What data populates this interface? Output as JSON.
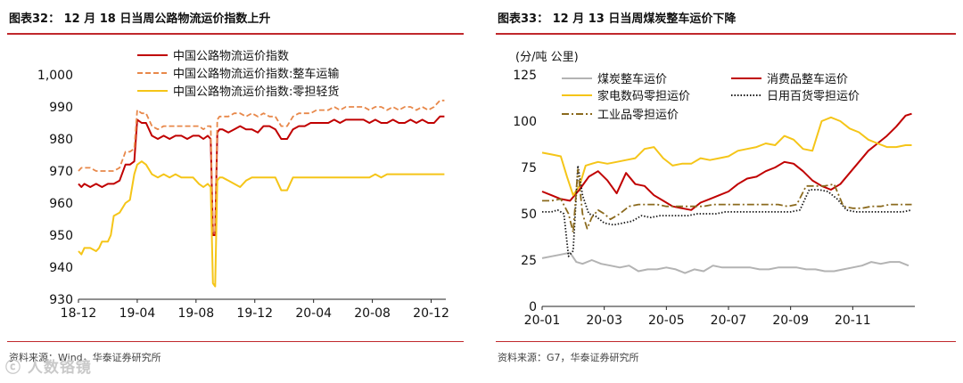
{
  "left": {
    "title": "图表32：  12 月 18 日当周公路物流运价指数上升",
    "source": "资料来源：Wind，华泰证券研究所",
    "chart_data": {
      "type": "line",
      "title": "12 月 18 日当周公路物流运价指数上升",
      "xlabel": "",
      "ylabel": "",
      "ylim": [
        930,
        1000
      ],
      "yticks": [
        930,
        940,
        950,
        960,
        970,
        980,
        990,
        1000
      ],
      "ytick_labels": [
        "930",
        "940",
        "950",
        "960",
        "970",
        "980",
        "990",
        "1,000"
      ],
      "xlim": [
        0,
        25
      ],
      "xticks": [
        0,
        4,
        8,
        12,
        16,
        20,
        24
      ],
      "xtick_labels": [
        "18-12",
        "19-04",
        "19-08",
        "19-12",
        "20-04",
        "20-08",
        "20-12"
      ],
      "legend_position": "top",
      "series": [
        {
          "name": "中国公路物流运价指数",
          "color": "#c00000",
          "style": "solid",
          "x": [
            0,
            0.2,
            0.4,
            0.8,
            1.2,
            1.6,
            2.0,
            2.4,
            2.8,
            3.2,
            3.5,
            3.8,
            4.0,
            4.3,
            4.6,
            5.0,
            5.4,
            5.8,
            6.2,
            6.6,
            7.0,
            7.4,
            7.8,
            8.2,
            8.5,
            8.8,
            9.0,
            9.15,
            9.3,
            9.45,
            9.6,
            9.8,
            10.2,
            10.6,
            11.0,
            11.4,
            11.8,
            12.2,
            12.6,
            13.0,
            13.4,
            13.8,
            14.2,
            14.6,
            15.0,
            15.4,
            15.8,
            16.2,
            16.6,
            17.0,
            17.4,
            17.8,
            18.2,
            18.6,
            19.0,
            19.4,
            19.8,
            20.2,
            20.6,
            21.0,
            21.4,
            21.8,
            22.2,
            22.6,
            23.0,
            23.4,
            23.8,
            24.2,
            24.6,
            24.9
          ],
          "values": [
            966,
            965,
            966,
            965,
            966,
            965,
            966,
            966,
            967,
            972,
            972,
            973,
            986,
            985,
            985,
            981,
            980,
            981,
            980,
            981,
            981,
            980,
            981,
            981,
            980,
            981,
            980,
            950,
            950,
            982,
            983,
            983,
            982,
            983,
            984,
            983,
            983,
            982,
            984,
            984,
            983,
            980,
            980,
            983,
            984,
            984,
            985,
            985,
            985,
            985,
            986,
            985,
            986,
            986,
            986,
            986,
            985,
            986,
            985,
            985,
            986,
            985,
            985,
            986,
            985,
            986,
            985,
            985,
            987,
            987
          ]
        },
        {
          "name": "中国公路物流运价指数:整车运输",
          "color": "#e8884a",
          "style": "dashed",
          "x": [
            0,
            0.2,
            0.4,
            0.8,
            1.2,
            1.6,
            2.0,
            2.4,
            2.8,
            3.2,
            3.5,
            3.8,
            4.0,
            4.3,
            4.6,
            5.0,
            5.4,
            5.8,
            6.2,
            6.6,
            7.0,
            7.4,
            7.8,
            8.2,
            8.5,
            8.8,
            9.0,
            9.15,
            9.3,
            9.45,
            9.6,
            9.8,
            10.2,
            10.6,
            11.0,
            11.4,
            11.8,
            12.2,
            12.6,
            13.0,
            13.4,
            13.8,
            14.2,
            14.6,
            15.0,
            15.4,
            15.8,
            16.2,
            16.6,
            17.0,
            17.4,
            17.8,
            18.2,
            18.6,
            19.0,
            19.4,
            19.8,
            20.2,
            20.6,
            21.0,
            21.4,
            21.8,
            22.2,
            22.6,
            23.0,
            23.4,
            23.8,
            24.2,
            24.6,
            24.9
          ],
          "values": [
            970,
            971,
            971,
            971,
            970,
            970,
            970,
            970,
            971,
            976,
            976,
            977,
            989,
            988,
            988,
            984,
            983,
            984,
            984,
            984,
            984,
            984,
            984,
            984,
            983,
            984,
            984,
            951,
            951,
            986,
            987,
            987,
            987,
            988,
            988,
            987,
            988,
            987,
            988,
            987,
            987,
            984,
            984,
            987,
            988,
            988,
            988,
            989,
            989,
            989,
            990,
            989,
            990,
            990,
            990,
            990,
            989,
            990,
            990,
            989,
            990,
            989,
            990,
            990,
            989,
            990,
            989,
            990,
            992,
            992
          ]
        },
        {
          "name": "中国公路物流运价指数:零担轻货",
          "color": "#f5c518",
          "style": "solid",
          "x": [
            0,
            0.2,
            0.4,
            0.8,
            1.2,
            1.4,
            1.6,
            2.0,
            2.2,
            2.4,
            2.8,
            3.2,
            3.5,
            3.8,
            4.0,
            4.3,
            4.6,
            5.0,
            5.4,
            5.8,
            6.2,
            6.6,
            7.0,
            7.4,
            7.8,
            8.2,
            8.5,
            8.8,
            9.0,
            9.15,
            9.3,
            9.45,
            9.6,
            9.8,
            10.2,
            10.6,
            11.0,
            11.4,
            11.8,
            12.2,
            12.6,
            13.0,
            13.4,
            13.8,
            14.2,
            14.6,
            15.0,
            15.4,
            15.8,
            16.2,
            16.6,
            17.0,
            17.4,
            17.8,
            18.2,
            18.6,
            19.0,
            19.4,
            19.8,
            20.2,
            20.6,
            21.0,
            21.4,
            21.8,
            22.2,
            22.6,
            23.0,
            23.4,
            23.8,
            24.2,
            24.6,
            24.9
          ],
          "values": [
            945,
            944,
            946,
            946,
            945,
            946,
            948,
            948,
            950,
            956,
            957,
            960,
            961,
            969,
            972,
            973,
            972,
            969,
            968,
            969,
            968,
            969,
            968,
            968,
            968,
            966,
            965,
            966,
            965,
            935,
            934,
            967,
            968,
            968,
            967,
            966,
            965,
            967,
            968,
            968,
            968,
            968,
            968,
            964,
            964,
            968,
            968,
            968,
            968,
            968,
            968,
            968,
            968,
            968,
            968,
            968,
            968,
            968,
            968,
            969,
            968,
            969,
            969,
            969,
            969,
            969,
            969,
            969,
            969,
            969,
            969,
            969
          ]
        }
      ]
    }
  },
  "right": {
    "title": "图表33：  12 月 13 日当周煤炭整车运价下降",
    "source": "资料来源：G7，华泰证券研究所",
    "chart_data": {
      "type": "line",
      "title": "12 月 13 日当周煤炭整车运价下降",
      "xlabel": "",
      "ylabel": "(分/吨 公里)",
      "ylim": [
        0,
        125
      ],
      "yticks": [
        0,
        25,
        50,
        75,
        100,
        125
      ],
      "ytick_labels": [
        "0",
        "25",
        "50",
        "75",
        "100",
        "125"
      ],
      "xlim": [
        0,
        12
      ],
      "xticks": [
        0,
        2,
        4,
        6,
        8,
        10
      ],
      "xtick_labels": [
        "20-01",
        "20-03",
        "20-05",
        "20-07",
        "20-09",
        "20-11"
      ],
      "legend_position": "top",
      "series": [
        {
          "name": "煤炭整车运价",
          "color": "#b3b3b3",
          "style": "solid",
          "x": [
            0,
            0.3,
            0.6,
            0.9,
            1.1,
            1.3,
            1.6,
            1.9,
            2.2,
            2.5,
            2.8,
            3.1,
            3.4,
            3.7,
            4.0,
            4.3,
            4.6,
            4.9,
            5.2,
            5.5,
            5.8,
            6.1,
            6.4,
            6.7,
            7.0,
            7.3,
            7.6,
            7.9,
            8.2,
            8.5,
            8.8,
            9.1,
            9.4,
            9.7,
            10.0,
            10.3,
            10.6,
            10.9,
            11.2,
            11.5,
            11.8
          ],
          "values": [
            26,
            27,
            28,
            29,
            24,
            23,
            25,
            23,
            22,
            21,
            22,
            19,
            20,
            20,
            21,
            20,
            18,
            20,
            19,
            22,
            21,
            21,
            21,
            21,
            20,
            20,
            21,
            21,
            21,
            20,
            20,
            19,
            19,
            20,
            21,
            22,
            24,
            23,
            24,
            24,
            22
          ]
        },
        {
          "name": "消费品整车运价",
          "color": "#c00000",
          "style": "solid",
          "x": [
            0,
            0.3,
            0.6,
            0.9,
            1.2,
            1.5,
            1.8,
            2.1,
            2.4,
            2.7,
            3.0,
            3.3,
            3.6,
            3.9,
            4.2,
            4.5,
            4.8,
            5.1,
            5.4,
            5.7,
            6.0,
            6.3,
            6.6,
            6.9,
            7.2,
            7.5,
            7.8,
            8.1,
            8.4,
            8.7,
            9.0,
            9.3,
            9.6,
            9.9,
            10.2,
            10.5,
            10.8,
            11.1,
            11.4,
            11.7,
            11.9
          ],
          "values": [
            62,
            60,
            58,
            57,
            63,
            70,
            73,
            68,
            61,
            72,
            66,
            65,
            60,
            57,
            54,
            53,
            52,
            56,
            58,
            60,
            62,
            66,
            69,
            70,
            73,
            75,
            78,
            77,
            73,
            68,
            65,
            63,
            66,
            72,
            78,
            84,
            88,
            92,
            97,
            103,
            104
          ]
        },
        {
          "name": "家电数码零担运价",
          "color": "#f5c518",
          "style": "solid",
          "x": [
            0,
            0.3,
            0.6,
            0.8,
            1.0,
            1.2,
            1.4,
            1.6,
            1.8,
            2.1,
            2.4,
            2.7,
            3.0,
            3.3,
            3.6,
            3.9,
            4.2,
            4.5,
            4.8,
            5.1,
            5.4,
            5.7,
            6.0,
            6.3,
            6.6,
            6.9,
            7.2,
            7.5,
            7.8,
            8.1,
            8.4,
            8.7,
            9.0,
            9.3,
            9.6,
            9.9,
            10.2,
            10.5,
            10.8,
            11.1,
            11.4,
            11.7,
            11.9
          ],
          "values": [
            83,
            82,
            81,
            70,
            60,
            65,
            76,
            77,
            78,
            77,
            78,
            79,
            80,
            85,
            86,
            80,
            76,
            77,
            77,
            80,
            79,
            80,
            81,
            84,
            85,
            86,
            88,
            87,
            92,
            90,
            85,
            84,
            100,
            102,
            100,
            96,
            94,
            90,
            88,
            86,
            86,
            87,
            87
          ]
        },
        {
          "name": "日用百货零担运价",
          "color": "#1a1a1a",
          "style": "dotted",
          "x": [
            0,
            0.3,
            0.5,
            0.7,
            0.85,
            1.0,
            1.15,
            1.3,
            1.5,
            1.7,
            2.0,
            2.3,
            2.6,
            2.9,
            3.2,
            3.5,
            3.8,
            4.1,
            4.4,
            4.7,
            5.0,
            5.3,
            5.6,
            5.9,
            6.2,
            6.5,
            6.8,
            7.1,
            7.4,
            7.7,
            8.0,
            8.3,
            8.6,
            8.9,
            9.2,
            9.5,
            9.8,
            10.1,
            10.4,
            10.7,
            11.0,
            11.3,
            11.6,
            11.9
          ],
          "values": [
            51,
            51,
            52,
            50,
            27,
            30,
            76,
            60,
            50,
            49,
            45,
            44,
            45,
            46,
            49,
            48,
            49,
            49,
            49,
            49,
            50,
            50,
            50,
            51,
            51,
            51,
            51,
            51,
            51,
            51,
            51,
            52,
            63,
            63,
            62,
            58,
            52,
            51,
            51,
            51,
            51,
            51,
            51,
            52
          ]
        },
        {
          "name": "工业品零担运价",
          "color": "#8b6a1e",
          "style": "dashdot",
          "x": [
            0,
            0.3,
            0.6,
            0.85,
            1.0,
            1.15,
            1.3,
            1.45,
            1.6,
            1.8,
            2.0,
            2.2,
            2.5,
            2.8,
            3.1,
            3.4,
            3.7,
            4.0,
            4.3,
            4.6,
            4.9,
            5.2,
            5.5,
            5.8,
            6.1,
            6.4,
            6.7,
            7.0,
            7.3,
            7.6,
            7.9,
            8.2,
            8.5,
            8.8,
            9.1,
            9.4,
            9.7,
            10.0,
            10.3,
            10.6,
            10.9,
            11.2,
            11.5,
            11.9
          ],
          "values": [
            57,
            57,
            58,
            50,
            40,
            74,
            50,
            42,
            48,
            52,
            50,
            47,
            50,
            54,
            55,
            55,
            55,
            54,
            54,
            54,
            54,
            54,
            55,
            55,
            55,
            55,
            55,
            55,
            55,
            55,
            54,
            55,
            65,
            65,
            65,
            66,
            54,
            53,
            53,
            54,
            54,
            55,
            55,
            55
          ]
        }
      ]
    }
  },
  "watermark_text": "人数铬镜"
}
